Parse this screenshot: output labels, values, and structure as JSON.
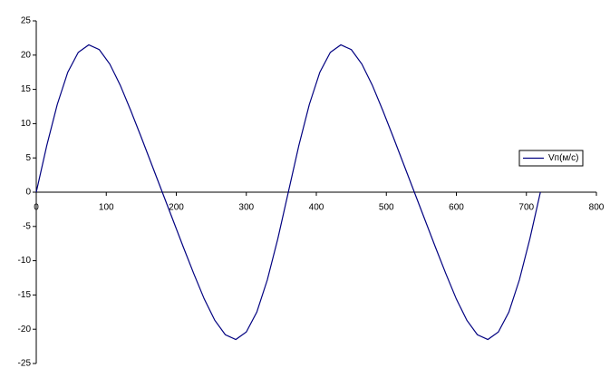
{
  "chart_data": {
    "type": "line",
    "x": [
      0,
      15,
      30,
      45,
      60,
      75,
      90,
      105,
      120,
      135,
      150,
      165,
      180,
      195,
      210,
      225,
      240,
      255,
      270,
      285,
      300,
      315,
      330,
      345,
      360,
      375,
      390,
      405,
      420,
      435,
      450,
      465,
      480,
      495,
      510,
      525,
      540,
      555,
      570,
      585,
      600,
      615,
      630,
      645,
      660,
      675,
      690,
      705,
      720
    ],
    "series": [
      {
        "name": "Vп(м/с)",
        "color": "#000080",
        "values": [
          0,
          6.8,
          12.8,
          17.5,
          20.4,
          21.5,
          20.8,
          18.7,
          15.6,
          11.9,
          8.0,
          4.0,
          0,
          -4.0,
          -8.0,
          -11.9,
          -15.6,
          -18.7,
          -20.8,
          -21.5,
          -20.4,
          -17.5,
          -12.8,
          -6.8,
          0,
          6.8,
          12.8,
          17.5,
          20.4,
          21.5,
          20.8,
          18.7,
          15.6,
          11.9,
          8.0,
          4.0,
          0,
          -4.0,
          -8.0,
          -11.9,
          -15.6,
          -18.7,
          -20.8,
          -21.5,
          -20.4,
          -17.5,
          -12.8,
          -6.8,
          0
        ]
      }
    ],
    "xlim": [
      0,
      800
    ],
    "xticks": [
      0,
      100,
      200,
      300,
      400,
      500,
      600,
      700,
      800
    ],
    "ylim": [
      -25,
      25
    ],
    "yticks": [
      -25,
      -20,
      -15,
      -10,
      -5,
      0,
      5,
      10,
      15,
      20,
      25
    ],
    "grid": false,
    "legend": "right"
  }
}
